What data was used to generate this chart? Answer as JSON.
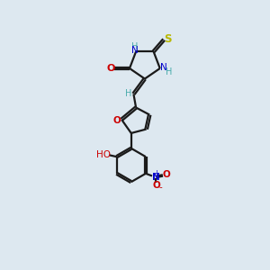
{
  "bg_color": "#dde8f0",
  "bond_color": "#1a1a1a",
  "N_color": "#0000cc",
  "O_color": "#cc0000",
  "S_color": "#b8b800",
  "H_color": "#4aacac",
  "lw": 1.6,
  "xlim": [
    0,
    10
  ],
  "ylim": [
    0,
    13
  ]
}
